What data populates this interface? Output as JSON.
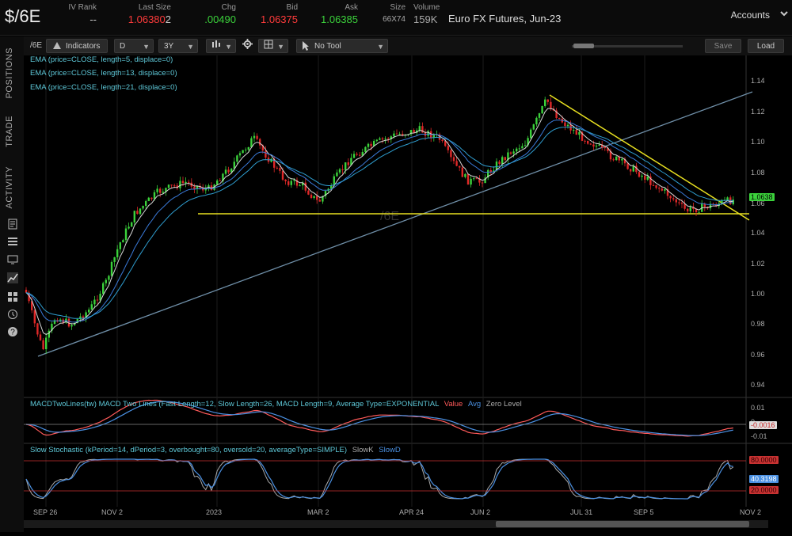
{
  "header": {
    "symbol": "$/6E",
    "quotes": [
      {
        "label": "IV Rank",
        "value": "--",
        "color": "#cccccc"
      },
      {
        "label": "Last Size",
        "value": "1.06380",
        "value2": "2",
        "color": "#ff3b3b"
      },
      {
        "label": "Chg",
        "value": ".00490",
        "color": "#3bd23b"
      },
      {
        "label": "Bid",
        "value": "1.06375",
        "color": "#ff3b3b"
      },
      {
        "label": "Ask",
        "value": "1.06385",
        "color": "#3bd23b"
      },
      {
        "label": "Size",
        "value": "66X74",
        "color": "#aaaaaa"
      },
      {
        "label": "Volume",
        "value": "159K",
        "color": "#aaaaaa"
      }
    ],
    "description": "Euro FX Futures, Jun-23",
    "accounts_label": "Accounts"
  },
  "toolbar": {
    "symbol": "/6E",
    "indicators_label": "Indicators",
    "interval": "D",
    "range": "3Y",
    "tool": "No Tool",
    "save_label": "Save",
    "load_label": "Load"
  },
  "side_tabs": [
    "POSITIONS",
    "TRADE",
    "ACTIVITY"
  ],
  "side_icons": [
    "news-icon",
    "list-icon",
    "screen-icon",
    "chart-icon",
    "grid-icon",
    "history-icon",
    "help-icon"
  ],
  "price_panel": {
    "watermark": "/6E",
    "studies": [
      {
        "text": "EMA (price=CLOSE, length=5, displace=0)",
        "color": "#5ec8d8"
      },
      {
        "text": "EMA (price=CLOSE, length=13, displace=0)",
        "color": "#5ec8d8"
      },
      {
        "text": "EMA (price=CLOSE, length=21, displace=0)",
        "color": "#5ec8d8"
      }
    ],
    "y_ticks": [
      "1.14",
      "1.12",
      "1.10",
      "1.08",
      "1.06",
      "1.04",
      "1.02",
      "1.00",
      "0.98",
      "0.96",
      "0.94"
    ],
    "last_price_tag": "1.0638"
  },
  "macd_panel": {
    "title": "MACDTwoLines(tw) MACD Two Lines (Fast Length=12, Slow Length=26, MACD Length=9, Average Type=EXPONENTIAL",
    "legend": [
      {
        "text": "Value",
        "color": "#ff5a5a"
      },
      {
        "text": "Avg",
        "color": "#4a90e2"
      },
      {
        "text": "Zero Level",
        "color": "#aaaaaa"
      }
    ],
    "y_ticks": [
      "0.01",
      "0",
      "-0.01"
    ],
    "value_tag": "-0.0016"
  },
  "stoch_panel": {
    "title": "Slow Stochastic (kPeriod=14, dPeriod=3, overbought=80, oversold=20, averageType=SIMPLE)",
    "legend": [
      {
        "text": "SlowK",
        "color": "#aaaaaa"
      },
      {
        "text": "SlowD",
        "color": "#4a90e2"
      }
    ],
    "tags": [
      {
        "text": "80.0000",
        "color": "#c83232"
      },
      {
        "text": "40.3198",
        "color": "#4a90e2"
      },
      {
        "text": "20.0000",
        "color": "#c83232"
      }
    ]
  },
  "x_ticks": [
    "SEP 26",
    "NOV 2",
    "2023",
    "MAR 2",
    "APR 24",
    "JUN 2",
    "JUL 31",
    "SEP 5",
    "NOV 2"
  ],
  "colors": {
    "up_candle": "#3bd23b",
    "down_candle": "#e02828",
    "trendline_yellow": "#e8e020",
    "trendline_blue": "#6f8fa8"
  }
}
